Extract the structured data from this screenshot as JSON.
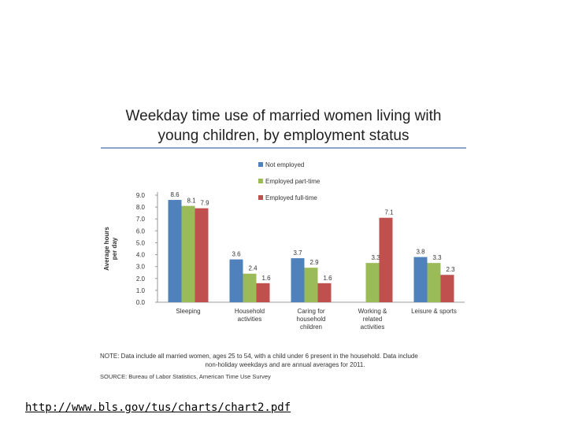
{
  "chart_data": {
    "type": "bar",
    "title_line1": "Weekday time use of married women living with",
    "title_line2": "young children, by employment status",
    "ylabel_line1": "Average hours",
    "ylabel_line2": "per day",
    "ylim": [
      0,
      9
    ],
    "yticks": [
      "0.0",
      "1.0",
      "2.0",
      "3.0",
      "4.0",
      "5.0",
      "6.0",
      "7.0",
      "8.0",
      "9.0"
    ],
    "categories": [
      [
        "Sleeping"
      ],
      [
        "Household",
        "activities"
      ],
      [
        "Caring for",
        "household",
        "children"
      ],
      [
        "Working &",
        "related",
        "activities"
      ],
      [
        "Leisure & sports"
      ]
    ],
    "series": [
      {
        "name": "Not employed",
        "color": "#4f81bd",
        "values": [
          8.6,
          3.6,
          3.7,
          null,
          3.8
        ],
        "labels": [
          "8.6",
          "3.6",
          "3.7",
          "",
          "3.8"
        ]
      },
      {
        "name": "Employed part-time",
        "color": "#9bbb59",
        "values": [
          8.1,
          2.4,
          2.9,
          3.3,
          3.3
        ],
        "labels": [
          "8.1",
          "2.4",
          "2.9",
          "3.3",
          "3.3"
        ]
      },
      {
        "name": "Employed full-time",
        "color": "#c0504d",
        "values": [
          7.9,
          1.6,
          1.6,
          7.1,
          2.3
        ],
        "labels": [
          "7.9",
          "1.6",
          "1.6",
          "7.1",
          "2.3"
        ]
      }
    ],
    "legend_position": "top-right",
    "grid": false
  },
  "note": {
    "line1": "NOTE: Data include all married women, ages 25 to 54, with a child under 6 present in the household. Data include",
    "line2": "non-holiday weekdays and are annual averages for 2011.",
    "source": "SOURCE: Bureau of Labor Statistics, American Time Use Survey"
  },
  "link": {
    "url": "http://www.bls.gov/tus/charts/chart2.pdf"
  }
}
